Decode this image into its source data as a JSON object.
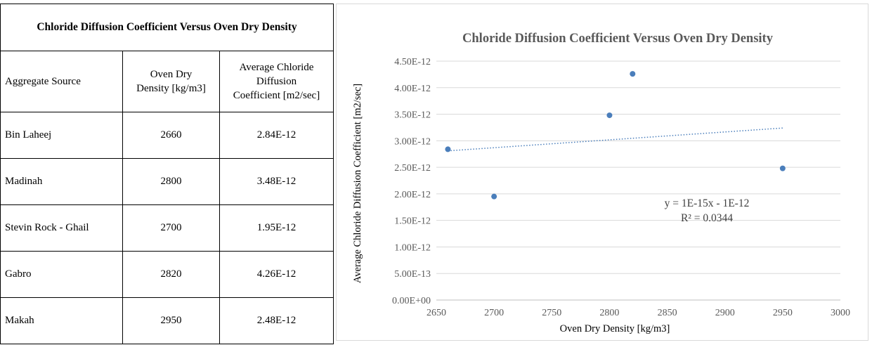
{
  "table": {
    "title": "Chloride Diffusion Coefficient Versus Oven Dry Density",
    "headers": {
      "source": "Aggregate Source",
      "density_l1": "Oven Dry",
      "density_l2": "Density [kg/m3]",
      "coef_l1": "Average Chloride",
      "coef_l2": "Diffusion",
      "coef_l3": "Coefficient [m2/sec]"
    },
    "rows": [
      {
        "source": "Bin Laheej",
        "density": "2660",
        "coefficient": "2.84E-12"
      },
      {
        "source": "Madinah",
        "density": "2800",
        "coefficient": "3.48E-12"
      },
      {
        "source": "Stevin Rock - Ghail",
        "density": "2700",
        "coefficient": "1.95E-12"
      },
      {
        "source": "Gabro",
        "density": "2820",
        "coefficient": "4.26E-12"
      },
      {
        "source": "Makah",
        "density": "2950",
        "coefficient": "2.48E-12"
      }
    ]
  },
  "chart_data": {
    "type": "scatter",
    "title": "Chloride Diffusion Coefficient Versus Oven Dry Density",
    "xlabel": "Oven Dry Density [kg/m3]",
    "ylabel": "Average Chloride Diffusion Coefficient [m2/sec]",
    "xlim": [
      2650,
      3000
    ],
    "ylim": [
      0,
      4.5e-12
    ],
    "xticks": [
      2650,
      2700,
      2750,
      2800,
      2850,
      2900,
      2950,
      3000
    ],
    "xtick_labels": [
      "2650",
      "2700",
      "2750",
      "2800",
      "2850",
      "2900",
      "2950",
      "3000"
    ],
    "yticks": [
      0,
      5e-13,
      1e-12,
      1.5e-12,
      2e-12,
      2.5e-12,
      3e-12,
      3.5e-12,
      4e-12,
      4.5e-12
    ],
    "ytick_labels": [
      "0.00E+00",
      "5.00E-13",
      "1.00E-12",
      "1.50E-12",
      "2.00E-12",
      "2.50E-12",
      "3.00E-12",
      "3.50E-12",
      "4.00E-12",
      "4.50E-12"
    ],
    "grid": true,
    "points": [
      {
        "x": 2660,
        "y": 2.84e-12
      },
      {
        "x": 2700,
        "y": 1.95e-12
      },
      {
        "x": 2800,
        "y": 3.48e-12
      },
      {
        "x": 2820,
        "y": 4.26e-12
      },
      {
        "x": 2950,
        "y": 2.48e-12
      }
    ],
    "trendline": {
      "type": "linear",
      "x": [
        2660,
        2950
      ],
      "y": [
        2.81e-12,
        3.24e-12
      ],
      "equation": "y = 1E-15x - 1E-12",
      "r_squared": "R² = 0.0344"
    },
    "colors": {
      "marker": "#4a7ebb",
      "trendline": "#4a7ebb",
      "grid": "#d9d9d9",
      "axis": "#bfbfbf"
    }
  }
}
